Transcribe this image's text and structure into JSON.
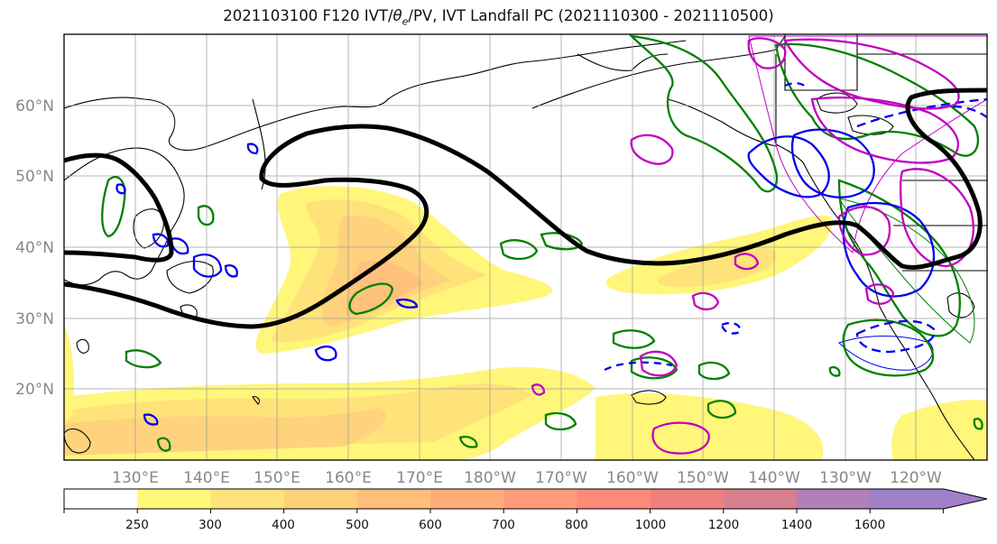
{
  "title_main": "2021103100 F120 IVT/",
  "title_theta": "θ",
  "title_sub": "e",
  "title_rest": "/PV, IVT Landfall PC (2021110300 - 2021110500)",
  "lat_labels": [
    "60°N",
    "50°N",
    "40°N",
    "30°N",
    "20°N"
  ],
  "lon_labels": [
    "130°E",
    "140°E",
    "150°E",
    "160°E",
    "170°E",
    "180°W",
    "170°W",
    "160°W",
    "150°W",
    "140°W",
    "130°W",
    "120°W"
  ],
  "colorbar": {
    "ticks": [
      "250",
      "300",
      "400",
      "500",
      "600",
      "700",
      "800",
      "1000",
      "1200",
      "1400",
      "1600"
    ],
    "colors": [
      "#ffffff",
      "#fff97a",
      "#ffe27a",
      "#ffd07a",
      "#ffbe7a",
      "#ffac7a",
      "#ff9a7a",
      "#ff8a7a",
      "#f0807e",
      "#d6808e",
      "#b080b8",
      "#a080c8"
    ]
  },
  "legend_colors": {
    "ivt_fill": "#fff06e",
    "pv_contour": "#000000",
    "blue_contour": "#0000ee",
    "green_contour": "#008000",
    "magenta_contour": "#c000c0"
  }
}
